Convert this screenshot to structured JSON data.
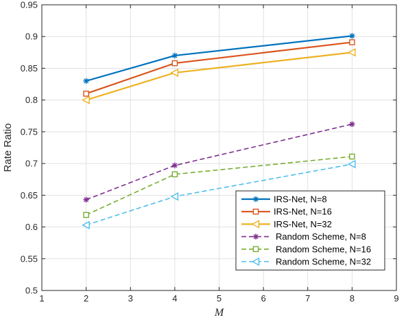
{
  "chart_data": {
    "type": "line",
    "title": "",
    "xlabel": "M",
    "ylabel": "Rate Ratio",
    "xlim": [
      1,
      9
    ],
    "ylim": [
      0.5,
      0.95
    ],
    "xticks": [
      "1",
      "2",
      "3",
      "4",
      "5",
      "6",
      "7",
      "8",
      "9"
    ],
    "yticks": [
      "0.5",
      "0.55",
      "0.6",
      "0.65",
      "0.7",
      "0.75",
      "0.8",
      "0.85",
      "0.9",
      "0.95"
    ],
    "grid": true,
    "legend_position": "bottom-right",
    "x": [
      2,
      4,
      8
    ],
    "series": [
      {
        "name": "IRS-Net, N=8",
        "values": [
          0.83,
          0.87,
          0.901
        ],
        "color": "#0072BD",
        "line": "solid",
        "marker": "asterisk"
      },
      {
        "name": "IRS-Net, N=16",
        "values": [
          0.81,
          0.858,
          0.891
        ],
        "color": "#D95319",
        "line": "solid",
        "marker": "square"
      },
      {
        "name": "IRS-Net, N=32",
        "values": [
          0.8,
          0.843,
          0.875
        ],
        "color": "#EDB120",
        "line": "solid",
        "marker": "triangle-left"
      },
      {
        "name": "Random Scheme, N=8",
        "values": [
          0.643,
          0.697,
          0.762
        ],
        "color": "#7E2F8E",
        "line": "dashed",
        "marker": "asterisk"
      },
      {
        "name": "Random Scheme, N=16",
        "values": [
          0.619,
          0.683,
          0.711
        ],
        "color": "#77AC30",
        "line": "dashed",
        "marker": "square"
      },
      {
        "name": "Random Scheme, N=32",
        "values": [
          0.603,
          0.648,
          0.699
        ],
        "color": "#4DBEEE",
        "line": "dashed",
        "marker": "triangle-left"
      }
    ]
  }
}
